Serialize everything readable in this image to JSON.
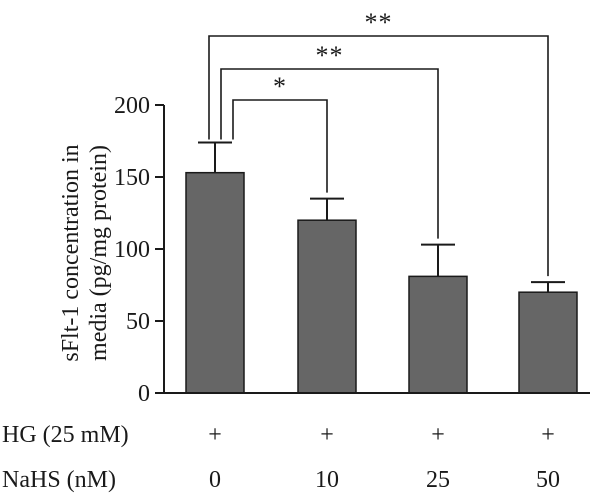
{
  "chart_data": {
    "type": "bar",
    "title": "",
    "ylabel": [
      "sFlt-1 concentration in",
      "media (pg/mg protein)"
    ],
    "xlabel": "",
    "ylim": [
      0,
      200
    ],
    "yticks": [
      "0",
      "50",
      "100",
      "150",
      "200"
    ],
    "categories": [
      "0",
      "10",
      "25",
      "50"
    ],
    "values": [
      153,
      120,
      81,
      70
    ],
    "errors": [
      21,
      15,
      22,
      7
    ],
    "bar_color": "#666666",
    "condition_rows": [
      {
        "label": "HG (25 mM)",
        "values": [
          "+",
          "+",
          "+",
          "+"
        ]
      },
      {
        "label": "NaHS (nM)",
        "values": [
          "0",
          "10",
          "25",
          "50"
        ]
      }
    ],
    "significance": [
      {
        "from": 0,
        "to": 1,
        "label": "*"
      },
      {
        "from": 0,
        "to": 2,
        "label": "**"
      },
      {
        "from": 0,
        "to": 3,
        "label": "**"
      }
    ]
  }
}
